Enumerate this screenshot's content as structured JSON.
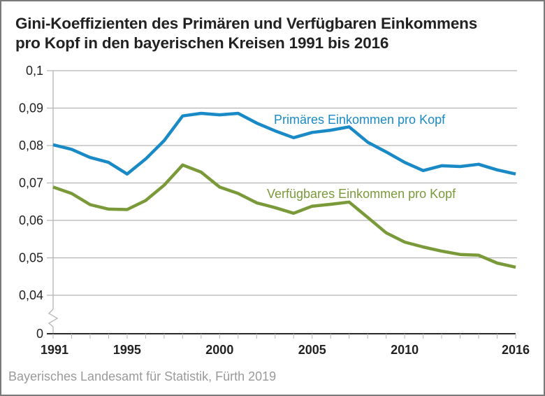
{
  "chart_data": {
    "type": "line",
    "title": "Gini-Koeffizienten des Primären und Verfügbaren Einkommens pro Kopf in den bayerischen Kreisen 1991 bis 2016",
    "title_lines": [
      "Gini-Koeffizienten des Primären und Verfügbaren Einkommens",
      "pro Kopf in den bayerischen Kreisen 1991 bis 2016"
    ],
    "xlabel": "",
    "ylabel": "",
    "x": [
      1991,
      1992,
      1993,
      1994,
      1995,
      1996,
      1997,
      1998,
      1999,
      2000,
      2001,
      2002,
      2003,
      2004,
      2005,
      2006,
      2007,
      2008,
      2009,
      2010,
      2011,
      2012,
      2013,
      2014,
      2015,
      2016
    ],
    "x_tick_labels": [
      "1991",
      "1995",
      "2000",
      "2005",
      "2010",
      "2016"
    ],
    "x_tick_values": [
      1991,
      1995,
      2000,
      2005,
      2010,
      2016
    ],
    "y_tick_labels": [
      "0",
      "0,04",
      "0,05",
      "0,06",
      "0,07",
      "0,08",
      "0,09",
      "0,1"
    ],
    "y_tick_values": [
      0,
      0.04,
      0.05,
      0.06,
      0.07,
      0.08,
      0.09,
      0.1
    ],
    "ylim": [
      0,
      0.1
    ],
    "y_axis_break": [
      0,
      0.04
    ],
    "grid": true,
    "legend": "inline-labels",
    "series": [
      {
        "name": "Primäres Einkommen pro Kopf",
        "color": "#1a8ac6",
        "values": [
          0.0802,
          0.079,
          0.0768,
          0.0755,
          0.0724,
          0.0764,
          0.0813,
          0.0879,
          0.0886,
          0.0882,
          0.0886,
          0.086,
          0.0839,
          0.0821,
          0.0835,
          0.0841,
          0.085,
          0.0809,
          0.0783,
          0.0755,
          0.0733,
          0.0746,
          0.0744,
          0.075,
          0.0735,
          0.0724
        ]
      },
      {
        "name": "Verfügbares Einkommen pro Kopf",
        "color": "#7a9a3a",
        "values": [
          0.0689,
          0.0672,
          0.0642,
          0.063,
          0.0629,
          0.0653,
          0.0694,
          0.0748,
          0.0729,
          0.0689,
          0.0672,
          0.0647,
          0.0634,
          0.0619,
          0.0638,
          0.0643,
          0.0649,
          0.0608,
          0.0567,
          0.0542,
          0.0529,
          0.0518,
          0.0509,
          0.0507,
          0.0486,
          0.0475
        ]
      }
    ],
    "source": "Bayerisches Landesamt für Statistik, Fürth 2019"
  }
}
